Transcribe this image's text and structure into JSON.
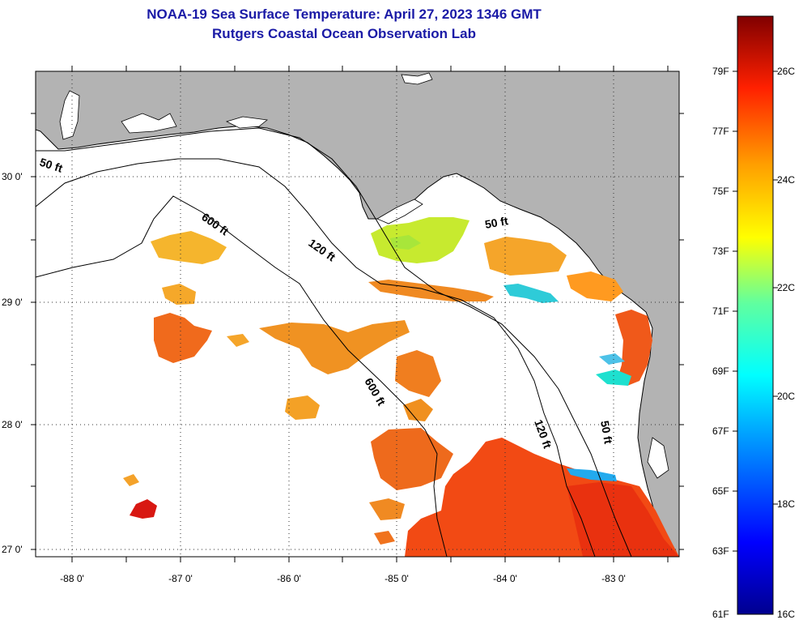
{
  "title": {
    "line1": "NOAA-19 Sea Surface Temperature:  April 27, 2023 1346 GMT",
    "line2": "Rutgers Coastal Ocean Observation Lab"
  },
  "map": {
    "lat_labels": [
      "30 0'",
      "29 0'",
      "28 0'",
      "27 0'"
    ],
    "lon_labels": [
      "-88 0'",
      "-87 0'",
      "-86 0'",
      "-85 0'",
      "-84 0'",
      "-83 0'"
    ],
    "depth_labels": [
      "50 ft",
      "600 ft",
      "120 ft",
      "50 ft",
      "600 ft",
      "120 ft",
      "50 ft"
    ]
  },
  "colorbar": {
    "f_labels": [
      "79F",
      "77F",
      "75F",
      "73F",
      "71F",
      "69F",
      "67F",
      "65F",
      "63F",
      "61F"
    ],
    "c_labels": [
      "26C",
      "24C",
      "22C",
      "20C",
      "18C",
      "16C"
    ]
  },
  "colors": {
    "land": "#b3b3b3",
    "ocean_no_data": "#ffffff",
    "title": "#1a1aa6"
  }
}
